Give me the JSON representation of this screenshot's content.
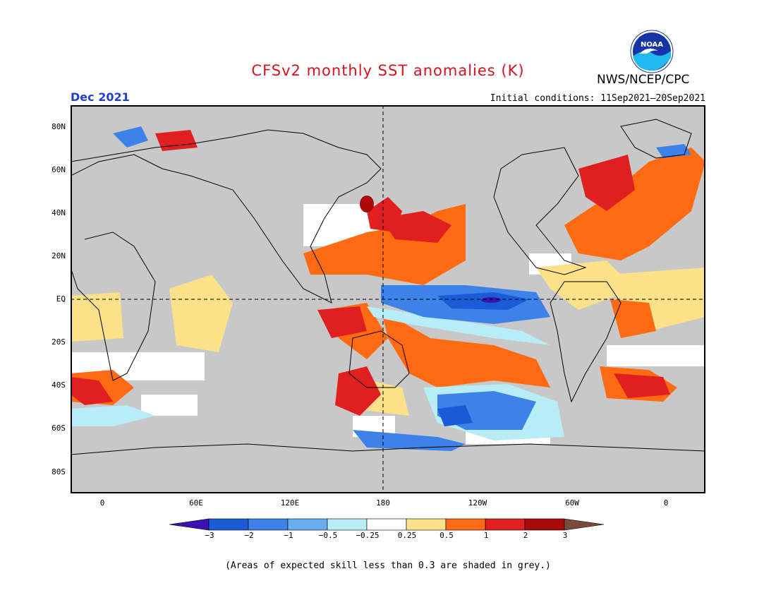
{
  "header": {
    "title": "CFSv2 monthly SST anomalies (K)",
    "agency": "NWS/NCEP/CPC",
    "logo_text": "NOAA",
    "month": "Dec 2021",
    "initial_conditions": "Initial conditions: 11Sep2021–20Sep2021"
  },
  "map": {
    "lat_labels": [
      "80N",
      "60N",
      "40N",
      "20N",
      "EQ",
      "20S",
      "40S",
      "60S",
      "80S"
    ],
    "lon_labels": [
      "0",
      "60E",
      "120E",
      "180",
      "120W",
      "60W",
      "0"
    ],
    "land_color": "#c8c8c8"
  },
  "colorbar": {
    "levels": [
      "−3",
      "−2",
      "−1",
      "−0.5",
      "−0.25",
      "0.25",
      "0.5",
      "1",
      "2",
      "3"
    ],
    "colors": [
      "#3a12b0",
      "#1a5bd6",
      "#3d82e8",
      "#6aaef2",
      "#b8ecf6",
      "#ffffff",
      "#fde08a",
      "#ff6a12",
      "#e02020",
      "#a80a0a",
      "#7a4a3a"
    ]
  },
  "footnote": "(Areas of expected skill less than 0.3 are shaded in grey.)"
}
